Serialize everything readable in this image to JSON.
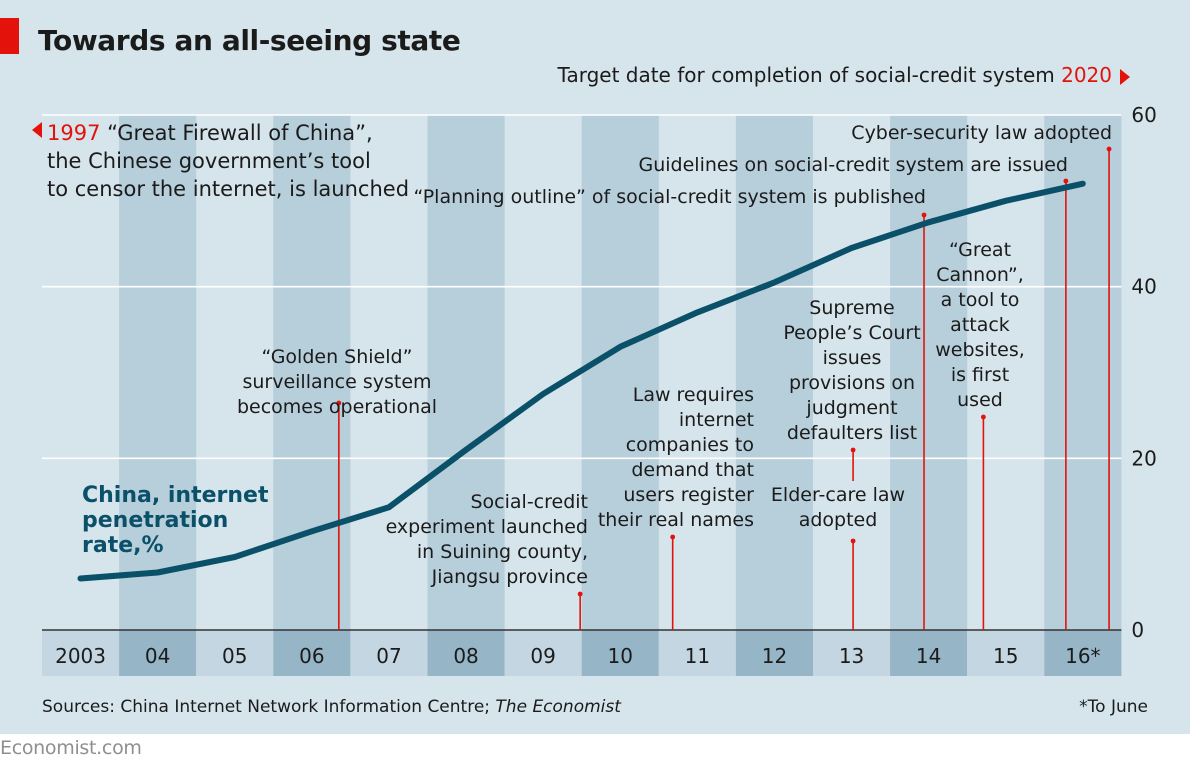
{
  "title": "Towards an all-seeing state",
  "source_prefix": "Sources: China Internet Network Information Centre;",
  "source_italic": "The Economist",
  "footnote": "*To June",
  "brand": "Economist.com",
  "colors": {
    "background": "#d6e4ec",
    "alt_band": "#b7cedb",
    "axis_band_light": "#c4d6e1",
    "axis_band_dark": "#96b5c7",
    "line": "#0a5068",
    "accent_red": "#e3120b",
    "text": "#1b1b1b"
  },
  "chart_data": {
    "type": "line",
    "x": [
      "2003",
      "2004",
      "2005",
      "2006",
      "2007",
      "2008",
      "2009",
      "2010",
      "2011",
      "2012",
      "2013",
      "2014",
      "2015",
      "2016*"
    ],
    "xtick_labels": [
      "2003",
      "04",
      "05",
      "06",
      "07",
      "08",
      "09",
      "10",
      "11",
      "12",
      "13",
      "14",
      "15",
      "16*"
    ],
    "series": [
      {
        "name": "China, internet penetration rate,%",
        "label_lines": [
          "China, internet",
          "penetration",
          "rate,%"
        ],
        "values": [
          6,
          6.7,
          8.5,
          11.5,
          14.3,
          21,
          27.5,
          33,
          37,
          40.5,
          44.5,
          47.5,
          50,
          52
        ]
      }
    ],
    "ylim": [
      0,
      60
    ],
    "yticks": [
      0,
      20,
      40,
      60
    ],
    "grid": true,
    "y_axis_side": "right",
    "top_right_note": {
      "text": "Target date for completion of social-credit system",
      "highlight": "2020"
    },
    "top_left_note": {
      "highlight": "1997",
      "lines": [
        "“Great Firewall of China”,",
        "the Chinese government’s tool",
        "to censor the internet, is launched"
      ]
    },
    "annotations": [
      {
        "x": "2006",
        "label_lines": [
          "“Golden Shield”",
          "surveillance system",
          "becomes operational"
        ]
      },
      {
        "x": "2009",
        "label_lines": [
          "Social-credit",
          "experiment launched",
          "in Suining county,",
          "Jiangsu province"
        ]
      },
      {
        "x": "2011",
        "label_lines": [
          "Law requires",
          "internet",
          "companies to",
          "demand that",
          "users register",
          "their real names"
        ]
      },
      {
        "x": "2013",
        "label_lines": [
          "Elder-care law",
          "adopted"
        ]
      },
      {
        "x": "2013",
        "label_lines": [
          "Supreme",
          "People’s Court",
          "issues",
          "provisions on",
          "judgment",
          "defaulters list"
        ]
      },
      {
        "x": "2014",
        "label_lines": [
          "“Planning outline” of social-credit system is published"
        ]
      },
      {
        "x": "2015",
        "label_lines": [
          "“Great",
          "Cannon”,",
          "a tool to",
          "attack",
          "websites,",
          "is first",
          "used"
        ]
      },
      {
        "x": "2016",
        "label_lines": [
          "Guidelines on social-credit system are issued"
        ]
      },
      {
        "x": "2016",
        "label_lines": [
          "Cyber-security law adopted"
        ]
      }
    ]
  }
}
